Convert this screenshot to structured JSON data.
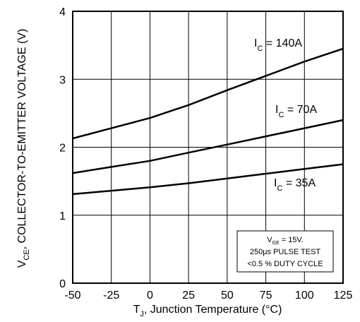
{
  "chart_data": {
    "type": "line",
    "xlabel": {
      "main": "T",
      "sub": "J",
      "rest": ", Junction Temperature (°C)"
    },
    "ylabel": {
      "main": "V",
      "sub": "CE",
      "rest": ", COLLECTOR-TO-EMITTER VOLTAGE (V)"
    },
    "xlim": [
      -50,
      125
    ],
    "ylim": [
      0,
      4
    ],
    "xticks": [
      -50,
      -25,
      0,
      25,
      50,
      75,
      100,
      125
    ],
    "yticks": [
      0,
      1,
      2,
      3,
      4
    ],
    "grid": true,
    "x": [
      -50,
      -25,
      0,
      25,
      50,
      75,
      100,
      125
    ],
    "series": [
      {
        "name": "IC = 140A",
        "label": {
          "main": "I",
          "sub": "C",
          "rest": " = 140A"
        },
        "values": [
          2.13,
          2.28,
          2.43,
          2.62,
          2.84,
          3.05,
          3.26,
          3.45
        ]
      },
      {
        "name": "IC = 70A",
        "label": {
          "main": "I",
          "sub": "C",
          "rest": " = 70A"
        },
        "values": [
          1.62,
          1.71,
          1.8,
          1.92,
          2.04,
          2.16,
          2.28,
          2.4
        ]
      },
      {
        "name": "IC = 35A",
        "label": {
          "main": "I",
          "sub": "C",
          "rest": " = 35A"
        },
        "values": [
          1.31,
          1.36,
          1.41,
          1.47,
          1.54,
          1.61,
          1.68,
          1.75
        ]
      }
    ],
    "annotation": {
      "line1": {
        "main": "V",
        "sub": "GE",
        "rest": " = 15V."
      },
      "line2": "250µs PULSE TEST",
      "line3": "<0.5 % DUTY CYCLE"
    }
  }
}
